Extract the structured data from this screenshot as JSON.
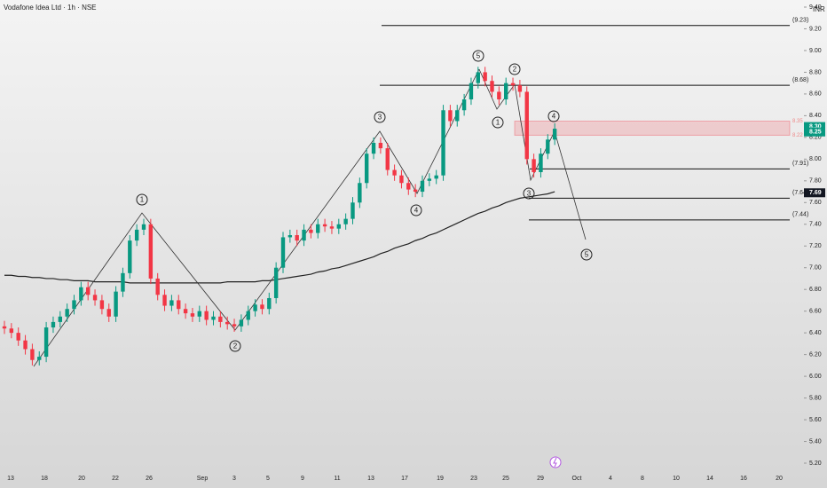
{
  "chart_data": {
    "type": "candlestick",
    "title": "Vodafone Idea Ltd · 1h · NSE",
    "currency": "INR",
    "up_color": "#089981",
    "down_color": "#f23645",
    "ma_color": "#222222",
    "ylim": [
      5.2,
      9.4
    ],
    "yticks": [
      {
        "value": 9.4,
        "label": "9.40"
      },
      {
        "value": 9.2,
        "label": "9.20"
      },
      {
        "value": 9.0,
        "label": "9.00"
      },
      {
        "value": 8.8,
        "label": "8.80"
      },
      {
        "value": 8.6,
        "label": "8.60"
      },
      {
        "value": 8.4,
        "label": "8.40"
      },
      {
        "value": 8.2,
        "label": "8.20"
      },
      {
        "value": 8.0,
        "label": "8.00"
      },
      {
        "value": 7.8,
        "label": "7.80"
      },
      {
        "value": 7.6,
        "label": "7.60"
      },
      {
        "value": 7.4,
        "label": "7.40"
      },
      {
        "value": 7.2,
        "label": "7.20"
      },
      {
        "value": 7.0,
        "label": "7.00"
      },
      {
        "value": 6.8,
        "label": "6.80"
      },
      {
        "value": 6.6,
        "label": "6.60"
      },
      {
        "value": 6.4,
        "label": "6.40"
      },
      {
        "value": 6.2,
        "label": "6.20"
      },
      {
        "value": 6.0,
        "label": "6.00"
      },
      {
        "value": 5.8,
        "label": "5.80"
      },
      {
        "value": 5.6,
        "label": "5.60"
      },
      {
        "value": 5.4,
        "label": "5.40"
      },
      {
        "value": 5.2,
        "label": "5.20"
      }
    ],
    "x_labels": [
      "13",
      "18",
      "20",
      "22",
      "26",
      "Sep",
      "3",
      "5",
      "9",
      "11",
      "13",
      "17",
      "19",
      "23",
      "25",
      "29",
      "Oct",
      "4",
      "8",
      "10",
      "14",
      "16",
      "20"
    ],
    "open": [
      6.46,
      6.44,
      6.4,
      6.33,
      6.25,
      6.15,
      6.18,
      6.45,
      6.5,
      6.55,
      6.62,
      6.7,
      6.82,
      6.75,
      6.7,
      6.62,
      6.55,
      6.78,
      6.95,
      7.25,
      7.35,
      7.4,
      6.9,
      6.75,
      6.65,
      6.7,
      6.62,
      6.58,
      6.55,
      6.6,
      6.52,
      6.55,
      6.5,
      6.48,
      6.46,
      6.52,
      6.6,
      6.66,
      6.62,
      6.72,
      7.0,
      7.28,
      7.3,
      7.25,
      7.35,
      7.32,
      7.4,
      7.38,
      7.36,
      7.4,
      7.45,
      7.6,
      7.78,
      8.05,
      8.15,
      8.1,
      7.9,
      7.85,
      7.78,
      7.72,
      7.7,
      7.8,
      7.82,
      7.85,
      8.45,
      8.35,
      8.45,
      8.55,
      8.7,
      8.8,
      8.72,
      8.62,
      8.55,
      8.7,
      8.68,
      8.62,
      8.0,
      7.88,
      8.05,
      8.18
    ],
    "high": [
      6.51,
      6.49,
      6.45,
      6.38,
      6.3,
      6.23,
      6.5,
      6.55,
      6.6,
      6.67,
      6.75,
      6.87,
      6.87,
      6.8,
      6.75,
      6.67,
      6.83,
      7.0,
      7.3,
      7.4,
      7.45,
      7.45,
      6.95,
      6.8,
      6.75,
      6.75,
      6.67,
      6.63,
      6.65,
      6.65,
      6.6,
      6.6,
      6.55,
      6.53,
      6.57,
      6.65,
      6.71,
      6.71,
      6.77,
      7.05,
      7.33,
      7.35,
      7.35,
      7.4,
      7.4,
      7.45,
      7.45,
      7.43,
      7.45,
      7.5,
      7.65,
      7.83,
      8.1,
      8.2,
      8.2,
      8.15,
      7.95,
      7.9,
      7.83,
      7.77,
      7.85,
      7.87,
      7.9,
      8.5,
      8.5,
      8.5,
      8.6,
      8.75,
      8.85,
      8.85,
      8.77,
      8.67,
      8.75,
      8.75,
      8.73,
      8.67,
      8.05,
      8.1,
      8.23,
      8.33
    ],
    "low": [
      6.39,
      6.35,
      6.28,
      6.2,
      6.1,
      6.1,
      6.13,
      6.4,
      6.45,
      6.5,
      6.57,
      6.65,
      6.7,
      6.65,
      6.57,
      6.5,
      6.5,
      6.73,
      6.9,
      7.2,
      7.3,
      6.85,
      6.7,
      6.6,
      6.6,
      6.57,
      6.53,
      6.5,
      6.5,
      6.47,
      6.47,
      6.45,
      6.43,
      6.41,
      6.41,
      6.47,
      6.55,
      6.57,
      6.57,
      6.67,
      6.95,
      7.23,
      7.2,
      7.2,
      7.27,
      7.27,
      7.33,
      7.31,
      7.31,
      7.35,
      7.4,
      7.55,
      7.73,
      8.0,
      8.05,
      7.85,
      7.8,
      7.73,
      7.67,
      7.65,
      7.65,
      7.75,
      7.77,
      7.8,
      8.3,
      8.3,
      8.4,
      8.5,
      8.65,
      8.67,
      8.57,
      8.5,
      8.5,
      8.63,
      8.57,
      7.95,
      7.83,
      7.83,
      8.0,
      8.13
    ],
    "close": [
      6.44,
      6.4,
      6.33,
      6.25,
      6.15,
      6.18,
      6.45,
      6.5,
      6.55,
      6.62,
      6.7,
      6.82,
      6.75,
      6.7,
      6.62,
      6.55,
      6.78,
      6.95,
      7.25,
      7.35,
      7.4,
      6.9,
      6.75,
      6.65,
      6.7,
      6.62,
      6.58,
      6.55,
      6.6,
      6.52,
      6.55,
      6.5,
      6.48,
      6.46,
      6.52,
      6.6,
      6.66,
      6.62,
      6.72,
      7.0,
      7.28,
      7.3,
      7.25,
      7.35,
      7.32,
      7.4,
      7.38,
      7.36,
      7.4,
      7.45,
      7.6,
      7.78,
      8.05,
      8.15,
      8.1,
      7.9,
      7.85,
      7.78,
      7.72,
      7.7,
      7.8,
      7.82,
      7.85,
      8.45,
      8.35,
      8.45,
      8.55,
      8.7,
      8.8,
      8.72,
      8.62,
      8.55,
      8.7,
      8.68,
      8.62,
      8.0,
      7.88,
      8.05,
      8.18,
      8.28
    ],
    "moving_average": [
      6.93,
      6.93,
      6.92,
      6.92,
      6.91,
      6.91,
      6.9,
      6.9,
      6.89,
      6.89,
      6.88,
      6.88,
      6.88,
      6.87,
      6.87,
      6.87,
      6.87,
      6.87,
      6.86,
      6.86,
      6.86,
      6.86,
      6.86,
      6.86,
      6.86,
      6.86,
      6.86,
      6.86,
      6.86,
      6.86,
      6.86,
      6.86,
      6.87,
      6.87,
      6.87,
      6.87,
      6.87,
      6.88,
      6.88,
      6.89,
      6.9,
      6.91,
      6.92,
      6.93,
      6.94,
      6.96,
      6.97,
      6.99,
      7.0,
      7.02,
      7.04,
      7.06,
      7.08,
      7.1,
      7.13,
      7.15,
      7.18,
      7.2,
      7.22,
      7.25,
      7.27,
      7.3,
      7.32,
      7.35,
      7.38,
      7.41,
      7.44,
      7.47,
      7.5,
      7.52,
      7.55,
      7.57,
      7.6,
      7.62,
      7.64,
      7.65,
      7.66,
      7.67,
      7.68,
      7.7
    ],
    "levels": [
      {
        "value": 9.23,
        "label": "(9.23)"
      },
      {
        "value": 8.68,
        "label": "(8.68)"
      },
      {
        "value": 7.91,
        "label": "(7.91)"
      },
      {
        "value": 7.64,
        "label": "(7.64)"
      },
      {
        "value": 7.44,
        "label": "(7.44)"
      }
    ],
    "zone": [
      8.22,
      8.35
    ],
    "zone_labels": [
      {
        "value": 8.35,
        "label": "8.35"
      },
      {
        "value": 8.22,
        "label": "8.22"
      }
    ],
    "badges": [
      {
        "value": 8.3,
        "label": "8.30",
        "color": "#089981"
      },
      {
        "value": 8.25,
        "label": "8.25",
        "color": "#089981"
      },
      {
        "value": 7.69,
        "label": "7.69",
        "color": "#131722"
      }
    ],
    "wave_labels": [
      "1",
      "2",
      "3",
      "4",
      "5",
      "1",
      "2",
      "3",
      "4",
      "5"
    ]
  }
}
